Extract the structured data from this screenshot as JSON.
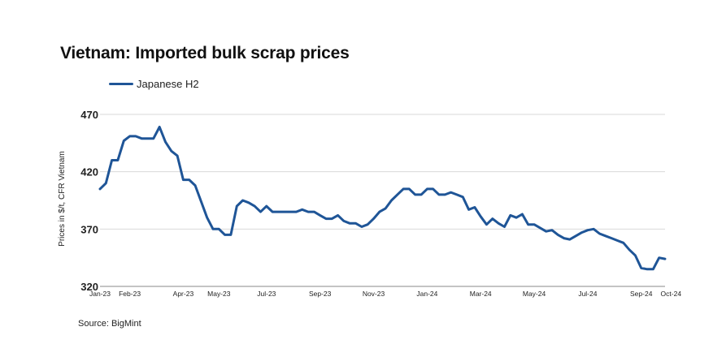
{
  "title": "Vietnam: Imported bulk scrap prices",
  "source": "Source: BigMint",
  "colors": {
    "series": "#1f5597",
    "grid": "#d9d9d9",
    "axis": "#888888"
  },
  "chart_data": {
    "type": "line",
    "title": "Vietnam: Imported bulk scrap prices",
    "ylabel": "Prices in $/t, CFR Vietnam",
    "xlabel": "",
    "ylim": [
      320,
      470
    ],
    "yticks": [
      320,
      370,
      420,
      470
    ],
    "grid": true,
    "legend_position": "top-left",
    "x_tick_labels": [
      "Jan-23",
      "Feb-23",
      "Apr-23",
      "May-23",
      "Jul-23",
      "Sep-23",
      "Nov-23",
      "Jan-24",
      "Mar-24",
      "May-24",
      "Jul-24",
      "Sep-24",
      "Oct-24"
    ],
    "x_tick_index": [
      0,
      5,
      14,
      20,
      28,
      37,
      46,
      55,
      64,
      73,
      82,
      91,
      96
    ],
    "series": [
      {
        "name": "Japanese H2",
        "values": [
          405,
          410,
          430,
          430,
          447,
          451,
          451,
          449,
          449,
          449,
          459,
          446,
          438,
          434,
          413,
          413,
          408,
          394,
          380,
          370,
          370,
          365,
          365,
          390,
          395,
          393,
          390,
          385,
          390,
          385,
          385,
          385,
          385,
          385,
          387,
          385,
          385,
          382,
          379,
          379,
          382,
          377,
          375,
          375,
          372,
          374,
          379,
          385,
          388,
          395,
          400,
          405,
          405,
          400,
          400,
          405,
          405,
          400,
          400,
          402,
          400,
          398,
          387,
          389,
          381,
          374,
          379,
          375,
          372,
          382,
          380,
          383,
          374,
          374,
          371,
          368,
          369,
          365,
          362,
          361,
          364,
          367,
          369,
          370,
          366,
          364,
          362,
          360,
          358,
          352,
          347,
          336,
          335,
          335,
          345,
          344
        ]
      }
    ]
  }
}
